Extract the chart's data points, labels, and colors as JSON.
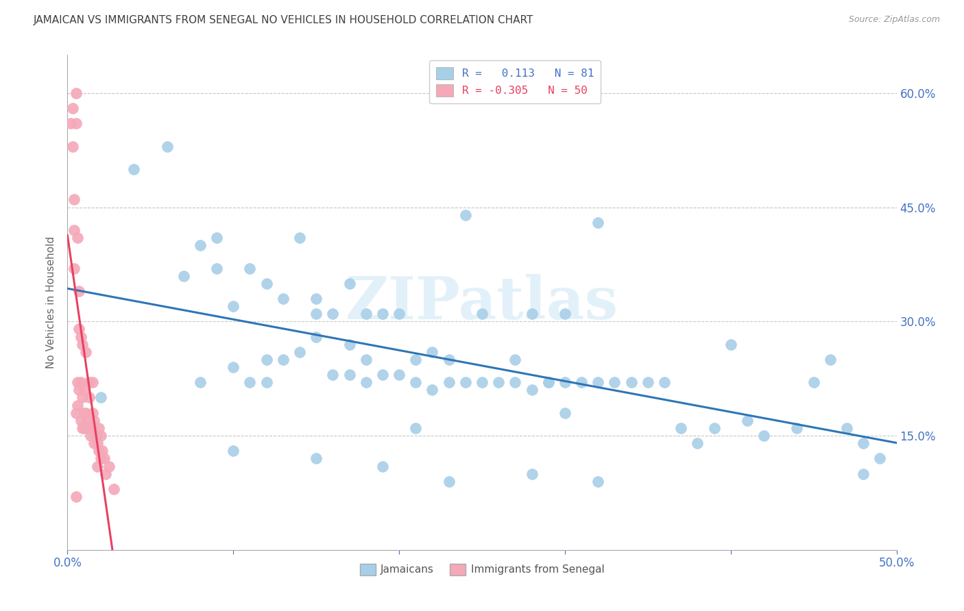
{
  "title": "JAMAICAN VS IMMIGRANTS FROM SENEGAL NO VEHICLES IN HOUSEHOLD CORRELATION CHART",
  "source": "Source: ZipAtlas.com",
  "ylabel": "No Vehicles in Household",
  "xlim": [
    0.0,
    0.5
  ],
  "ylim": [
    0.0,
    0.65
  ],
  "xticks": [
    0.0,
    0.1,
    0.2,
    0.3,
    0.4,
    0.5
  ],
  "xticklabels": [
    "0.0%",
    "",
    "",
    "",
    "",
    "50.0%"
  ],
  "yticks": [
    0.0,
    0.15,
    0.3,
    0.45,
    0.6
  ],
  "yticklabels_right": [
    "",
    "15.0%",
    "30.0%",
    "45.0%",
    "60.0%"
  ],
  "r_jamaican": 0.113,
  "n_jamaican": 81,
  "r_senegal": -0.305,
  "n_senegal": 50,
  "blue_color": "#a8cfe8",
  "pink_color": "#f4a8b8",
  "trend_blue": "#2e75b6",
  "trend_pink": "#e84060",
  "watermark_color": "#d0e8f5",
  "background_color": "#ffffff",
  "title_color": "#404040",
  "axis_label_color": "#666666",
  "tick_color": "#4472c4",
  "grid_color": "#c0c0c0",
  "jamaican_x": [
    0.02,
    0.04,
    0.06,
    0.07,
    0.08,
    0.08,
    0.09,
    0.09,
    0.1,
    0.1,
    0.11,
    0.11,
    0.12,
    0.12,
    0.12,
    0.13,
    0.13,
    0.14,
    0.14,
    0.15,
    0.15,
    0.15,
    0.16,
    0.16,
    0.17,
    0.17,
    0.17,
    0.18,
    0.18,
    0.18,
    0.19,
    0.19,
    0.2,
    0.2,
    0.21,
    0.21,
    0.21,
    0.22,
    0.22,
    0.23,
    0.23,
    0.24,
    0.24,
    0.25,
    0.25,
    0.26,
    0.27,
    0.27,
    0.28,
    0.28,
    0.29,
    0.29,
    0.3,
    0.3,
    0.3,
    0.31,
    0.32,
    0.32,
    0.33,
    0.34,
    0.35,
    0.36,
    0.37,
    0.38,
    0.39,
    0.4,
    0.41,
    0.42,
    0.44,
    0.45,
    0.46,
    0.47,
    0.48,
    0.48,
    0.49,
    0.32,
    0.23,
    0.1,
    0.15,
    0.28,
    0.19
  ],
  "jamaican_y": [
    0.2,
    0.5,
    0.53,
    0.36,
    0.22,
    0.4,
    0.37,
    0.41,
    0.24,
    0.32,
    0.22,
    0.37,
    0.35,
    0.25,
    0.22,
    0.25,
    0.33,
    0.26,
    0.41,
    0.31,
    0.28,
    0.33,
    0.23,
    0.31,
    0.35,
    0.27,
    0.23,
    0.31,
    0.22,
    0.25,
    0.23,
    0.31,
    0.23,
    0.31,
    0.22,
    0.25,
    0.16,
    0.21,
    0.26,
    0.22,
    0.25,
    0.22,
    0.44,
    0.22,
    0.31,
    0.22,
    0.22,
    0.25,
    0.21,
    0.31,
    0.22,
    0.22,
    0.22,
    0.18,
    0.31,
    0.22,
    0.22,
    0.43,
    0.22,
    0.22,
    0.22,
    0.22,
    0.16,
    0.14,
    0.16,
    0.27,
    0.17,
    0.15,
    0.16,
    0.22,
    0.25,
    0.16,
    0.14,
    0.1,
    0.12,
    0.09,
    0.09,
    0.13,
    0.12,
    0.1,
    0.11
  ],
  "senegal_x": [
    0.002,
    0.003,
    0.003,
    0.004,
    0.004,
    0.004,
    0.005,
    0.005,
    0.005,
    0.005,
    0.006,
    0.006,
    0.006,
    0.007,
    0.007,
    0.007,
    0.008,
    0.008,
    0.008,
    0.009,
    0.009,
    0.009,
    0.01,
    0.01,
    0.01,
    0.011,
    0.011,
    0.012,
    0.012,
    0.013,
    0.013,
    0.014,
    0.014,
    0.015,
    0.015,
    0.015,
    0.016,
    0.016,
    0.017,
    0.018,
    0.018,
    0.019,
    0.019,
    0.02,
    0.02,
    0.021,
    0.022,
    0.023,
    0.025,
    0.028
  ],
  "senegal_y": [
    0.56,
    0.53,
    0.58,
    0.46,
    0.42,
    0.37,
    0.6,
    0.56,
    0.18,
    0.07,
    0.41,
    0.22,
    0.19,
    0.34,
    0.29,
    0.21,
    0.28,
    0.22,
    0.17,
    0.27,
    0.2,
    0.16,
    0.21,
    0.18,
    0.16,
    0.26,
    0.18,
    0.17,
    0.16,
    0.22,
    0.2,
    0.16,
    0.15,
    0.22,
    0.18,
    0.16,
    0.17,
    0.14,
    0.15,
    0.14,
    0.11,
    0.16,
    0.13,
    0.15,
    0.12,
    0.13,
    0.12,
    0.1,
    0.11,
    0.08
  ]
}
